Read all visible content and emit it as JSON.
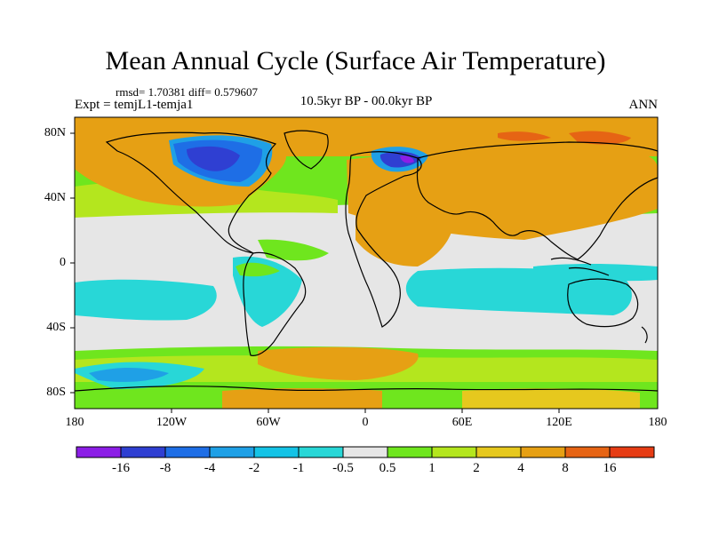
{
  "title": "Mean Annual Cycle (Surface Air Temperature)",
  "stats": "rmsd= 1.70381 diff= 0.579607",
  "experiment": "Expt = temjL1-temja1",
  "period": "10.5kyr BP - 00.0kyr BP",
  "season": "ANN",
  "lat_labels": [
    "80N",
    "40N",
    "0",
    "40S",
    "80S"
  ],
  "lon_labels": [
    "180",
    "120W",
    "60W",
    "0",
    "60E",
    "120E",
    "180"
  ],
  "colorbar": {
    "colors": [
      "#8c1ee6",
      "#2f3fd2",
      "#1e6ee6",
      "#1fa0e6",
      "#14c3e6",
      "#28d7d7",
      "#e6e6e6",
      "#6fe61e",
      "#b4e61e",
      "#e6c81e",
      "#e6a014",
      "#e66414",
      "#e63c14"
    ],
    "tick_labels": [
      "-16",
      "-8",
      "-4",
      "-2",
      "-1",
      "-0.5",
      "0.5",
      "1",
      "2",
      "4",
      "8",
      "16"
    ]
  },
  "map_colors": {
    "ocean_neutral": "#e6e6e6",
    "light_green": "#b4e61e",
    "green": "#6fe61e",
    "yellow": "#e6c81e",
    "orange": "#e6a014",
    "dark_orange": "#e66414",
    "red": "#e63c14",
    "cyan": "#28d7d7",
    "light_cyan": "#14c3e6",
    "light_blue": "#1fa0e6",
    "blue": "#1e6ee6",
    "dark_blue": "#2f3fd2",
    "purple": "#8c1ee6",
    "coast": "#000000"
  }
}
